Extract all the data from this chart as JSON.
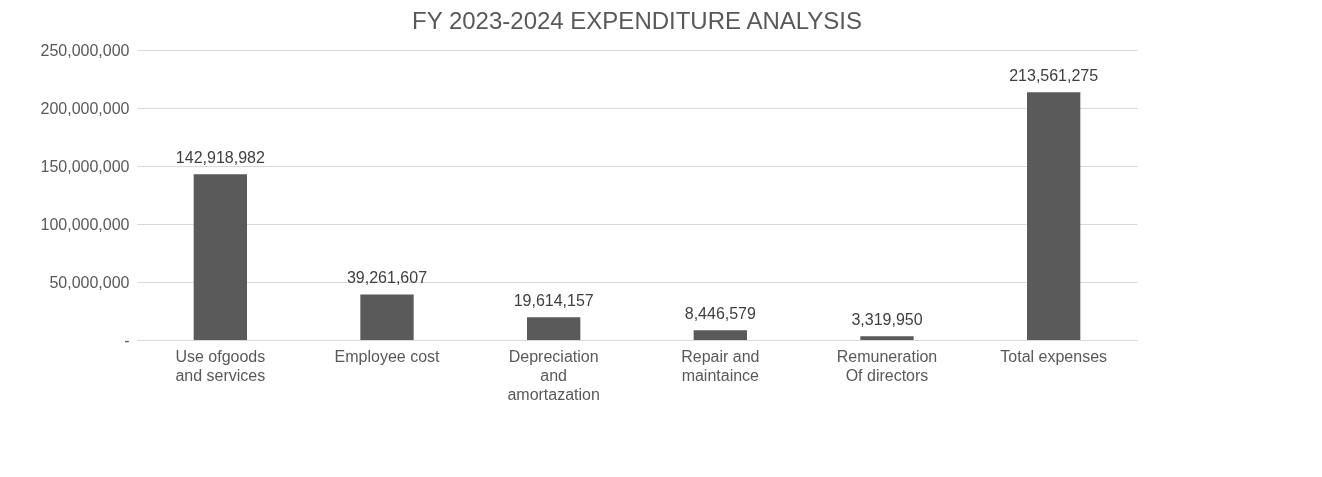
{
  "chart_data": {
    "type": "bar",
    "title": "FY 2023-2024  EXPENDITURE ANALYSIS",
    "categories": [
      "Use ofgoods and services",
      "Employee cost",
      "Depreciation and amortazation",
      "Repair and maintaince",
      "Remuneration Of directors",
      "Total expenses"
    ],
    "values": [
      142918982,
      39261607,
      19614157,
      8446579,
      3319950,
      213561275
    ],
    "value_labels": [
      "142,918,982",
      "39,261,607",
      "19,614,157",
      "8,446,579",
      "3,319,950",
      "213,561,275"
    ],
    "color": "#5a5a5a",
    "ylim": [
      0,
      250000000
    ],
    "yticks": [
      {
        "value": 0,
        "label": "-"
      },
      {
        "value": 50000000,
        "label": "50,000,000"
      },
      {
        "value": 100000000,
        "label": "100,000,000"
      },
      {
        "value": 150000000,
        "label": "150,000,000"
      },
      {
        "value": 200000000,
        "label": "200,000,000"
      },
      {
        "value": 250000000,
        "label": "250,000,000"
      }
    ],
    "grid": "y"
  }
}
